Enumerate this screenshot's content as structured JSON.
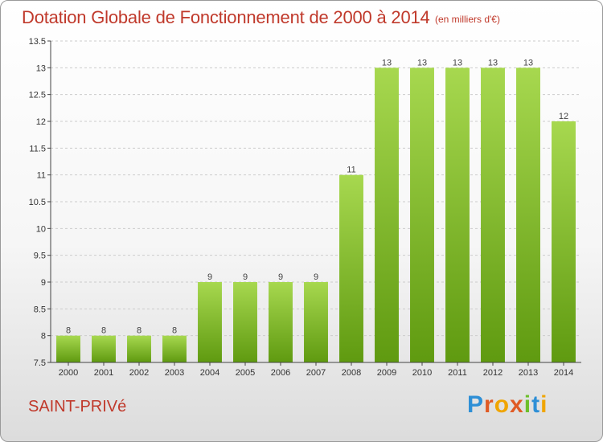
{
  "header": {
    "title": "Dotation Globale de Fonctionnement de 2000 à 2014",
    "unit": "(en milliers d'€)"
  },
  "footer": {
    "commune": "SAINT-PRIVé",
    "brand": "Proxiti"
  },
  "colors": {
    "bar_light": "#a7d84f",
    "bar_dark": "#5f9a10",
    "title": "#c0392b",
    "grid": "#cccccc",
    "axis": "#444444"
  },
  "chart_data": {
    "type": "bar",
    "categories": [
      "2000",
      "2001",
      "2002",
      "2003",
      "2004",
      "2005",
      "2006",
      "2007",
      "2008",
      "2009",
      "2010",
      "2011",
      "2012",
      "2013",
      "2014"
    ],
    "values": [
      8,
      8,
      8,
      8,
      9,
      9,
      9,
      9,
      11,
      13,
      13,
      13,
      13,
      13,
      12
    ],
    "title": "Dotation Globale de Fonctionnement de 2000 à 2014",
    "subtitle": "(en milliers d'€)",
    "xlabel": "",
    "ylabel": "",
    "ylim": [
      7.5,
      13.5
    ],
    "yticks": [
      "7.5",
      "8",
      "8.5",
      "9",
      "9.5",
      "10",
      "10.5",
      "11",
      "11.5",
      "12",
      "12.5",
      "13",
      "13.5"
    ],
    "grid": "horizontal dashed",
    "legend": "none"
  }
}
